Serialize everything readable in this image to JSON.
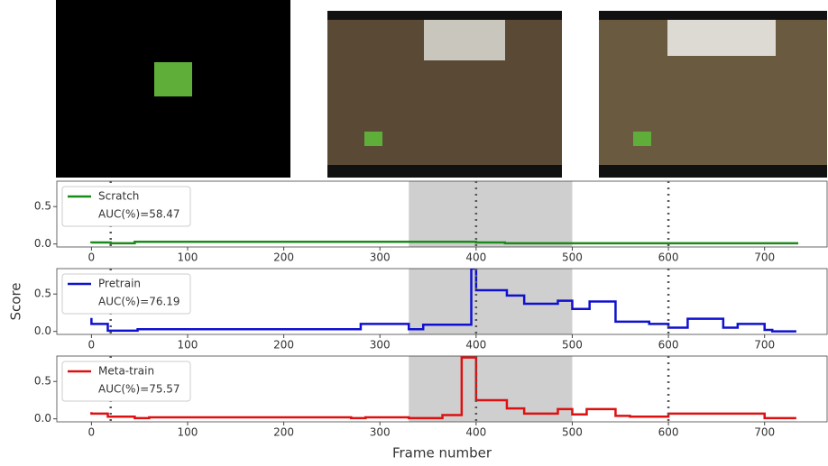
{
  "chart_data": [
    {
      "type": "line",
      "drawstyle": "steps-post",
      "xlim": [
        -36,
        765
      ],
      "ylim": [
        -0.04,
        0.84
      ],
      "xticks": [
        0,
        100,
        200,
        300,
        400,
        500,
        600,
        700
      ],
      "yticks": [
        {
          "value": 0,
          "label": "0.0"
        },
        {
          "value": 0.5,
          "label": "0.5"
        }
      ],
      "shade": [
        330,
        500
      ],
      "vlines": [
        20,
        400,
        600
      ],
      "legend": "upper left",
      "series": [
        {
          "name": "Scratch",
          "color": "#1a8a1a",
          "annotation": "AUC(%)=58.47",
          "x": [
            0,
            20,
            45,
            400,
            430,
            735
          ],
          "values": [
            0.01,
            0.02,
            0.01,
            0.03,
            0.02,
            0.01
          ]
        }
      ]
    },
    {
      "type": "line",
      "drawstyle": "steps-post",
      "ylabel": "Score",
      "xlim": [
        -36,
        765
      ],
      "ylim": [
        -0.04,
        0.84
      ],
      "xticks": [
        0,
        100,
        200,
        300,
        400,
        500,
        600,
        700
      ],
      "yticks": [
        {
          "value": 0,
          "label": "0.0"
        },
        {
          "value": 0.5,
          "label": "0.5"
        }
      ],
      "shade": [
        330,
        500
      ],
      "vlines": [
        20,
        400,
        600
      ],
      "legend": "upper left",
      "series": [
        {
          "name": "Pretrain",
          "color": "#1010d0",
          "annotation": "AUC(%)=76.19",
          "x": [
            0,
            17,
            48,
            280,
            330,
            345,
            395,
            400,
            432,
            450,
            485,
            500,
            518,
            545,
            555,
            580,
            600,
            620,
            657,
            672,
            700,
            708,
            733
          ],
          "values": [
            0.18,
            0.1,
            0.01,
            0.03,
            0.1,
            0.03,
            0.09,
            0.84,
            0.55,
            0.48,
            0.37,
            0.41,
            0.3,
            0.4,
            0.13,
            0.13,
            0.1,
            0.05,
            0.17,
            0.05,
            0.1,
            0.02,
            0
          ]
        }
      ]
    },
    {
      "type": "line",
      "drawstyle": "steps-post",
      "xlabel": "Frame number",
      "xlim": [
        -36,
        765
      ],
      "ylim": [
        -0.04,
        0.84
      ],
      "xticks": [
        0,
        100,
        200,
        300,
        400,
        500,
        600,
        700
      ],
      "yticks": [
        {
          "value": 0,
          "label": "0.0"
        },
        {
          "value": 0.5,
          "label": "0.5"
        }
      ],
      "shade": [
        330,
        500
      ],
      "vlines": [
        20,
        400,
        600
      ],
      "legend": "upper left",
      "series": [
        {
          "name": "Meta-train",
          "color": "#dd1111",
          "annotation": "AUC(%)=75.57",
          "x": [
            0,
            17,
            45,
            60,
            270,
            285,
            330,
            365,
            385,
            400,
            432,
            450,
            485,
            500,
            515,
            545,
            560,
            600,
            700,
            715,
            733
          ],
          "values": [
            0.09,
            0.07,
            0.03,
            0.01,
            0.02,
            0.01,
            0.02,
            0.01,
            0.05,
            0.82,
            0.25,
            0.14,
            0.07,
            0.13,
            0.06,
            0.13,
            0.04,
            0.03,
            0.07,
            0.01,
            0.01
          ]
        }
      ]
    }
  ]
}
